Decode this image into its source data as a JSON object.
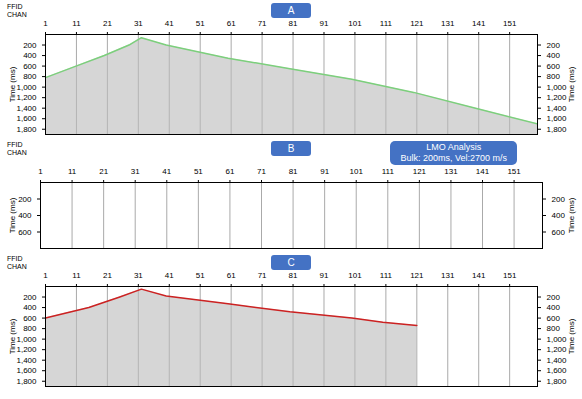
{
  "chart_data": [
    {
      "type": "line",
      "title": "A",
      "subtitle": "FFID",
      "x_label": "CHAN",
      "y_label": "Time (ms)",
      "xlim": [
        1,
        160
      ],
      "xticks": [
        1,
        11,
        21,
        31,
        41,
        51,
        61,
        71,
        81,
        91,
        101,
        111,
        121,
        131,
        141,
        151
      ],
      "ylim": [
        0,
        1900
      ],
      "yticks": [
        200,
        400,
        600,
        800,
        1000,
        1200,
        1400,
        1600,
        1800
      ],
      "grid": true,
      "series": [
        {
          "color": "#7ccf7c",
          "x": [
            1,
            10,
            20,
            28,
            32,
            40,
            60,
            80,
            100,
            120,
            140,
            160
          ],
          "values": [
            820,
            620,
            400,
            200,
            60,
            200,
            450,
            650,
            850,
            1100,
            1400,
            1700
          ]
        }
      ]
    },
    {
      "type": "line",
      "title": "B",
      "subtitle": "FFID",
      "x_label": "CHAN",
      "y_label": "Time (ms)",
      "annotation": [
        "LMO Analysis",
        "Bulk: 200ms, Vel:2700 m/s"
      ],
      "xlim": [
        1,
        160
      ],
      "xticks": [
        1,
        11,
        21,
        31,
        41,
        51,
        61,
        71,
        81,
        91,
        101,
        111,
        121,
        131,
        141,
        151
      ],
      "ylim": [
        0,
        800
      ],
      "yticks": [
        200,
        400,
        600
      ],
      "grid": true,
      "series": []
    },
    {
      "type": "line",
      "title": "C",
      "subtitle": "FFID",
      "x_label": "CHAN",
      "y_label": "Time (ms)",
      "xlim": [
        1,
        160
      ],
      "xticks": [
        1,
        11,
        21,
        31,
        41,
        51,
        61,
        71,
        81,
        91,
        101,
        111,
        121,
        131,
        141,
        151
      ],
      "ylim": [
        0,
        1900
      ],
      "yticks": [
        200,
        400,
        600,
        800,
        1000,
        1200,
        1400,
        1600,
        1800
      ],
      "grid": true,
      "series": [
        {
          "color": "#cc2222",
          "x": [
            1,
            15,
            25,
            32,
            40,
            60,
            80,
            100,
            110,
            121
          ],
          "values": [
            600,
            400,
            200,
            50,
            180,
            330,
            480,
            600,
            680,
            740
          ]
        }
      ]
    }
  ]
}
